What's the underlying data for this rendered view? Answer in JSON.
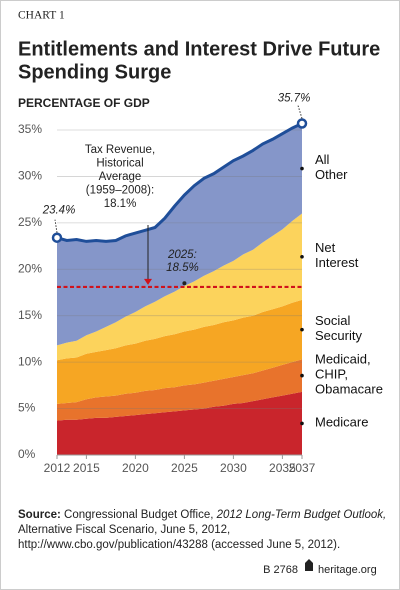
{
  "chart_data": {
    "type": "stacked-area",
    "kicker": "CHART 1",
    "title": [
      "Entitlements and Interest Drive Future",
      "Spending Surge"
    ],
    "y_label": "PERCENTAGE OF GDP",
    "x": [
      2012,
      2013,
      2014,
      2015,
      2016,
      2017,
      2018,
      2019,
      2020,
      2021,
      2022,
      2023,
      2024,
      2025,
      2026,
      2027,
      2028,
      2029,
      2030,
      2031,
      2032,
      2033,
      2034,
      2035,
      2036,
      2037
    ],
    "xlim": [
      2012,
      2037
    ],
    "xticks": [
      2012,
      2015,
      2020,
      2025,
      2030,
      2035,
      2037
    ],
    "ylim": [
      0,
      37
    ],
    "yticks": [
      {
        "value": 0,
        "label": "0%"
      },
      {
        "value": 5,
        "label": "5%"
      },
      {
        "value": 10,
        "label": "10%"
      },
      {
        "value": 15,
        "label": "15%"
      },
      {
        "value": 20,
        "label": "20%"
      },
      {
        "value": 25,
        "label": "25%"
      },
      {
        "value": 30,
        "label": "30%"
      },
      {
        "value": 35,
        "label": "35%"
      }
    ],
    "grid": true,
    "series": [
      {
        "name": "Medicare",
        "color": "#c9252c",
        "values": [
          3.7,
          3.8,
          3.8,
          3.9,
          4.0,
          4.0,
          4.1,
          4.2,
          4.3,
          4.4,
          4.5,
          4.6,
          4.7,
          4.8,
          4.9,
          5.0,
          5.2,
          5.3,
          5.5,
          5.6,
          5.8,
          6.0,
          6.2,
          6.4,
          6.6,
          6.8
        ]
      },
      {
        "name": "Medicaid, CHIP, Obamacare",
        "color": "#e8732c",
        "values": [
          1.8,
          1.8,
          1.9,
          2.1,
          2.2,
          2.3,
          2.3,
          2.4,
          2.4,
          2.5,
          2.5,
          2.6,
          2.6,
          2.7,
          2.7,
          2.8,
          2.8,
          2.9,
          2.9,
          3.0,
          3.0,
          3.1,
          3.2,
          3.3,
          3.4,
          3.5
        ]
      },
      {
        "name": "Social Security",
        "color": "#f6a623",
        "values": [
          4.7,
          4.8,
          4.8,
          4.9,
          4.9,
          5.0,
          5.1,
          5.2,
          5.3,
          5.4,
          5.5,
          5.6,
          5.7,
          5.8,
          5.9,
          6.0,
          6.0,
          6.1,
          6.1,
          6.2,
          6.2,
          6.3,
          6.3,
          6.3,
          6.4,
          6.4
        ]
      },
      {
        "name": "Net Interest",
        "color": "#fcd35c",
        "values": [
          1.6,
          1.7,
          1.8,
          2.0,
          2.2,
          2.5,
          2.8,
          3.1,
          3.4,
          3.7,
          4.0,
          4.3,
          4.6,
          4.9,
          5.2,
          5.5,
          5.8,
          6.1,
          6.4,
          6.8,
          7.1,
          7.5,
          7.9,
          8.3,
          8.8,
          9.3
        ]
      },
      {
        "name": "All Other",
        "color": "#8596c9",
        "values": [
          11.6,
          11.0,
          10.9,
          10.1,
          9.8,
          9.2,
          8.8,
          8.7,
          8.5,
          8.2,
          8.0,
          8.4,
          9.2,
          9.8,
          10.3,
          10.5,
          10.5,
          10.6,
          10.8,
          10.6,
          10.7,
          10.6,
          10.4,
          10.3,
          10.0,
          9.7
        ]
      }
    ],
    "total_line_color": "#1f4e99",
    "reference_line": {
      "value": 18.1,
      "color": "#d0121b",
      "label": [
        "Tax Revenue,",
        "Historical",
        "Average",
        "(1959–2008):",
        "18.1%"
      ]
    },
    "annotations": [
      {
        "text": "23.4%",
        "x": 2012,
        "y": 23.4
      },
      {
        "text": "35.7%",
        "x": 2037,
        "y": 35.7
      },
      {
        "text": "2025:",
        "x": 2025,
        "y": 18.5,
        "value_text": "18.5%"
      }
    ]
  },
  "source": {
    "label": "Source:",
    "agency": "Congressional Budget Office,",
    "title": "2012 Long-Term Budget Outlook,",
    "lines": [
      "Alternative Fiscal Scenario, June 5, 2012,",
      "http://www.cbo.gov/publication/43288 (accessed June 5, 2012)."
    ]
  },
  "footer": {
    "report": "B 2768",
    "site": "heritage.org"
  }
}
